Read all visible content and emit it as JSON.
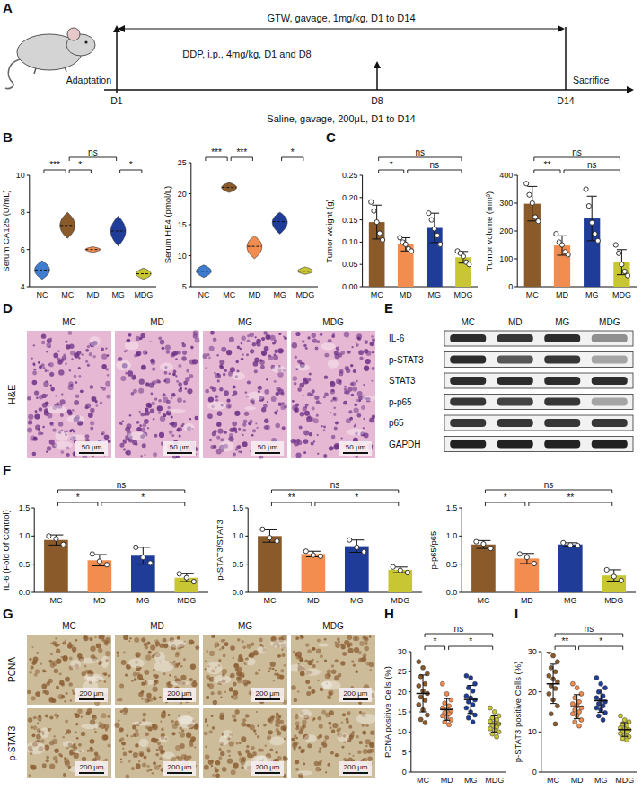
{
  "chart_data": [
    {
      "panel": "B",
      "type": "violin",
      "y_label": "Serum CA125 (U/mL)",
      "categories": [
        "NC",
        "MC",
        "MD",
        "MG",
        "MDG"
      ],
      "values": [
        4.9,
        7.3,
        6.0,
        7.0,
        4.7
      ],
      "low": [
        4.4,
        6.6,
        5.85,
        6.2,
        4.4
      ],
      "high": [
        5.4,
        8.0,
        6.15,
        7.8,
        5.0
      ],
      "colors": [
        "#3e7ccf",
        "#8b5a2b",
        "#f28c4f",
        "#1f3c99",
        "#c8c632"
      ],
      "ylim": [
        4,
        10
      ],
      "yticks": [
        4,
        6,
        8,
        10
      ],
      "comparisons": [
        {
          "groups": [
            "NC",
            "MC"
          ],
          "label": "***"
        },
        {
          "groups": [
            "MC",
            "MG"
          ],
          "label": "ns"
        },
        {
          "groups": [
            "MC",
            "MD"
          ],
          "label": "*"
        },
        {
          "groups": [
            "MG",
            "MDG"
          ],
          "label": "*"
        }
      ]
    },
    {
      "type": "violin",
      "y_label": "Serum HE4 (pmol/L)",
      "categories": [
        "NC",
        "MC",
        "MD",
        "MG",
        "MDG"
      ],
      "values": [
        7.5,
        21.0,
        11.5,
        15.5,
        7.5
      ],
      "low": [
        6.5,
        20.2,
        9.5,
        13.5,
        7.0
      ],
      "high": [
        8.5,
        21.8,
        13.2,
        17.0,
        8.2
      ],
      "colors": [
        "#3e7ccf",
        "#8b5a2b",
        "#f28c4f",
        "#1f3c99",
        "#c8c632"
      ],
      "ylim": [
        5,
        25
      ],
      "yticks": [
        5,
        10,
        15,
        20,
        25
      ],
      "comparisons": [
        {
          "groups": [
            "NC",
            "MC"
          ],
          "label": "***"
        },
        {
          "groups": [
            "MC",
            "MD"
          ],
          "label": "***"
        },
        {
          "groups": [
            "MG",
            "MDG"
          ],
          "label": "*"
        }
      ]
    },
    {
      "panel": "C",
      "type": "bar",
      "y_label": "Tumor weight (g)",
      "categories": [
        "MC",
        "MD",
        "MG",
        "MDG"
      ],
      "values": [
        0.145,
        0.095,
        0.132,
        0.066
      ],
      "errors": [
        0.038,
        0.015,
        0.033,
        0.013
      ],
      "points": [
        [
          0.19,
          0.17,
          0.145,
          0.12,
          0.105
        ],
        [
          0.11,
          0.1,
          0.095,
          0.085,
          0.08
        ],
        [
          0.165,
          0.15,
          0.13,
          0.115,
          0.095
        ],
        [
          0.08,
          0.075,
          0.068,
          0.055,
          0.05
        ]
      ],
      "colors": [
        "#8b5a2b",
        "#f28c4f",
        "#1f3c99",
        "#c8c632"
      ],
      "ylim": [
        0,
        0.25
      ],
      "yticks": [
        {
          "value": 0,
          "label": "0.00"
        },
        0.05,
        {
          "value": 0.1,
          "label": "0.10"
        },
        0.15,
        {
          "value": 0.2,
          "label": "0.20"
        },
        0.25
      ],
      "comparisons": [
        {
          "groups": [
            "MC",
            "MDG"
          ],
          "label": "ns"
        },
        {
          "groups": [
            "MC",
            "MD"
          ],
          "label": "*"
        },
        {
          "groups": [
            "MD",
            "MDG"
          ],
          "label": "ns"
        }
      ]
    },
    {
      "type": "bar",
      "y_label": "Tumor volume (mm³)",
      "categories": [
        "MC",
        "MD",
        "MG",
        "MDG"
      ],
      "values": [
        298,
        148,
        245,
        88
      ],
      "errors": [
        62,
        35,
        80,
        45
      ],
      "points": [
        [
          370,
          330,
          300,
          250,
          235
        ],
        [
          190,
          160,
          150,
          125,
          115
        ],
        [
          350,
          290,
          230,
          190,
          165
        ],
        [
          150,
          120,
          80,
          55,
          40
        ]
      ],
      "colors": [
        "#8b5a2b",
        "#f28c4f",
        "#1f3c99",
        "#c8c632"
      ],
      "ylim": [
        0,
        400
      ],
      "yticks": [
        0,
        100,
        200,
        300,
        400
      ],
      "comparisons": [
        {
          "groups": [
            "MC",
            "MDG"
          ],
          "label": "ns"
        },
        {
          "groups": [
            "MC",
            "MD"
          ],
          "label": "**"
        },
        {
          "groups": [
            "MD",
            "MDG"
          ],
          "label": "ns"
        }
      ]
    },
    {
      "panel": "F",
      "type": "bar",
      "y_label": "IL-6 (Fold Of Control)",
      "categories": [
        "MC",
        "MD",
        "MG",
        "MDG"
      ],
      "values": [
        0.93,
        0.57,
        0.65,
        0.26
      ],
      "errors": [
        0.09,
        0.1,
        0.15,
        0.07
      ],
      "points": [
        [
          1.0,
          0.95,
          0.85
        ],
        [
          0.68,
          0.55,
          0.49
        ],
        [
          0.8,
          0.62,
          0.52
        ],
        [
          0.33,
          0.26,
          0.19
        ]
      ],
      "colors": [
        "#8b5a2b",
        "#f28c4f",
        "#1f3c99",
        "#c8c632"
      ],
      "ylim": [
        0,
        1.5
      ],
      "yticks": [
        {
          "value": 0,
          "label": "0.0"
        },
        0.5,
        {
          "value": 1,
          "label": "1.0"
        },
        1.5
      ],
      "comparisons": [
        {
          "groups": [
            "MC",
            "MDG"
          ],
          "label": "ns"
        },
        {
          "groups": [
            "MC",
            "MD"
          ],
          "label": "*"
        },
        {
          "groups": [
            "MD",
            "MDG"
          ],
          "label": "*"
        }
      ]
    },
    {
      "type": "bar",
      "y_label": "p-STAT3/STAT3",
      "categories": [
        "MC",
        "MD",
        "MG",
        "MDG"
      ],
      "values": [
        1.0,
        0.68,
        0.82,
        0.4
      ],
      "errors": [
        0.11,
        0.05,
        0.11,
        0.05
      ],
      "points": [
        [
          1.12,
          0.97,
          0.91
        ],
        [
          0.73,
          0.66,
          0.64
        ],
        [
          0.93,
          0.8,
          0.72
        ],
        [
          0.45,
          0.39,
          0.35
        ]
      ],
      "colors": [
        "#8b5a2b",
        "#f28c4f",
        "#1f3c99",
        "#c8c632"
      ],
      "ylim": [
        0,
        1.5
      ],
      "yticks": [
        {
          "value": 0,
          "label": "0.0"
        },
        0.5,
        {
          "value": 1,
          "label": "1.0"
        },
        1.5
      ],
      "comparisons": [
        {
          "groups": [
            "MC",
            "MDG"
          ],
          "label": "ns"
        },
        {
          "groups": [
            "MC",
            "MD"
          ],
          "label": "**"
        },
        {
          "groups": [
            "MD",
            "MDG"
          ],
          "label": "*"
        }
      ]
    },
    {
      "type": "bar",
      "y_label": "p-p65/p65",
      "categories": [
        "MC",
        "MD",
        "MG",
        "MDG"
      ],
      "values": [
        0.85,
        0.6,
        0.85,
        0.3
      ],
      "errors": [
        0.07,
        0.09,
        0.03,
        0.1
      ],
      "points": [
        [
          0.9,
          0.86,
          0.78
        ],
        [
          0.68,
          0.62,
          0.51
        ],
        [
          0.88,
          0.84,
          0.83
        ],
        [
          0.4,
          0.28,
          0.21
        ]
      ],
      "colors": [
        "#8b5a2b",
        "#f28c4f",
        "#1f3c99",
        "#c8c632"
      ],
      "ylim": [
        0,
        1.5
      ],
      "yticks": [
        {
          "value": 0,
          "label": "0.0"
        },
        0.5,
        {
          "value": 1,
          "label": "1.0"
        },
        1.5
      ],
      "comparisons": [
        {
          "groups": [
            "MC",
            "MDG"
          ],
          "label": "ns"
        },
        {
          "groups": [
            "MC",
            "MD"
          ],
          "label": "*"
        },
        {
          "groups": [
            "MD",
            "MDG"
          ],
          "label": "**"
        }
      ]
    },
    {
      "panel": "H",
      "type": "dot",
      "y_label": "PCNA positive Cells (%)",
      "categories": [
        "MC",
        "MD",
        "MG",
        "MDG"
      ],
      "values": [
        19.6,
        15.6,
        18.1,
        12.0
      ],
      "errors": [
        4.6,
        2.7,
        3.5,
        2.0
      ],
      "points": [
        [
          27.5,
          26,
          24.5,
          23.8,
          22,
          21.5,
          20.2,
          19.6,
          18.7,
          17.9,
          16.8,
          15.5,
          14.2,
          13.1,
          12.3
        ],
        [
          22,
          19.5,
          18,
          17.2,
          16.5,
          16,
          15.7,
          15.2,
          14.8,
          14.5,
          14,
          13.6,
          13,
          12.5,
          11.8
        ],
        [
          24,
          23.5,
          22,
          21,
          20.2,
          19,
          18.5,
          18,
          17.5,
          16.8,
          16,
          15,
          14.2,
          13.5,
          12.5
        ],
        [
          16,
          15,
          14,
          13.5,
          13,
          12.6,
          12.2,
          12,
          11.6,
          11.2,
          10.8,
          10.4,
          10,
          9.5,
          8.8
        ]
      ],
      "colors": [
        "#8b5a2b",
        "#f28c4f",
        "#1f3c99",
        "#c8c632"
      ],
      "ylim": [
        0,
        30
      ],
      "yticks": [
        0,
        5,
        10,
        15,
        20,
        25,
        30
      ],
      "comparisons": [
        {
          "groups": [
            "MC",
            "MDG"
          ],
          "label": "ns"
        },
        {
          "groups": [
            "MC",
            "MD"
          ],
          "label": "*"
        },
        {
          "groups": [
            "MD",
            "MDG"
          ],
          "label": "*"
        }
      ]
    },
    {
      "panel": "I",
      "type": "dot",
      "y_label": "p-STAT3 positive Cells (%)",
      "categories": [
        "MC",
        "MD",
        "MG",
        "MDG"
      ],
      "values": [
        22.0,
        16.3,
        17.8,
        10.6
      ],
      "errors": [
        4.9,
        3.0,
        2.9,
        1.7
      ],
      "points": [
        [
          30,
          29,
          27.5,
          26,
          25,
          24,
          23.2,
          22.5,
          21.5,
          20.8,
          19.5,
          18,
          16.5,
          14.5,
          12
        ],
        [
          22,
          21,
          19.5,
          18.5,
          17.5,
          17,
          16.5,
          16,
          15.5,
          15,
          14.5,
          14,
          13,
          12.5,
          11.5
        ],
        [
          23.5,
          22,
          21,
          20,
          19,
          18.5,
          18,
          17.5,
          17,
          16.5,
          16,
          15.5,
          14.8,
          14,
          13
        ],
        [
          14,
          13,
          12.5,
          12,
          11.5,
          11,
          10.8,
          10.5,
          10.2,
          10,
          9.6,
          9.2,
          8.8,
          8.4,
          8
        ]
      ],
      "colors": [
        "#8b5a2b",
        "#f28c4f",
        "#1f3c99",
        "#c8c632"
      ],
      "ylim": [
        0,
        30
      ],
      "yticks": [
        0,
        10,
        20,
        30
      ],
      "comparisons": [
        {
          "groups": [
            "MC",
            "MDG"
          ],
          "label": "ns"
        },
        {
          "groups": [
            "MC",
            "MD"
          ],
          "label": "**"
        },
        {
          "groups": [
            "MD",
            "MDG"
          ],
          "label": "*"
        }
      ]
    }
  ],
  "scheme": {
    "panel": "A",
    "gtw": "GTW, gavage, 1mg/kg, D1 to D14",
    "ddp": "DDP, i.p., 4mg/kg, D1 and D8",
    "saline": "Saline, gavage, 200μL, D1 to D14",
    "start": "Adaptation",
    "days": [
      "D1",
      "D8",
      "D14"
    ],
    "end": "Sacrifice"
  },
  "he_images": {
    "panel": "D",
    "stain": "H&E",
    "columns": [
      "MC",
      "MD",
      "MG",
      "MDG"
    ],
    "scale_bar": "50 μm"
  },
  "blot": {
    "panel": "E",
    "columns": [
      "MC",
      "MD",
      "MG",
      "MDG"
    ],
    "rows": [
      {
        "label": "IL-6",
        "intensity": [
          0.9,
          0.85,
          0.9,
          0.45
        ]
      },
      {
        "label": "p-STAT3",
        "intensity": [
          0.9,
          0.7,
          0.85,
          0.35
        ]
      },
      {
        "label": "STAT3",
        "intensity": [
          0.9,
          0.9,
          0.9,
          0.9
        ]
      },
      {
        "label": "p-p65",
        "intensity": [
          0.85,
          0.8,
          0.85,
          0.35
        ]
      },
      {
        "label": "p65",
        "intensity": [
          0.85,
          0.85,
          0.85,
          0.85
        ]
      },
      {
        "label": "GAPDH",
        "intensity": [
          0.95,
          0.95,
          0.95,
          0.95
        ]
      }
    ]
  },
  "ihc_images": {
    "panel": "G",
    "columns": [
      "MC",
      "MD",
      "MG",
      "MDG"
    ],
    "rows": [
      "PCNA",
      "p-STAT3"
    ],
    "scale_bar": "200 μm"
  }
}
